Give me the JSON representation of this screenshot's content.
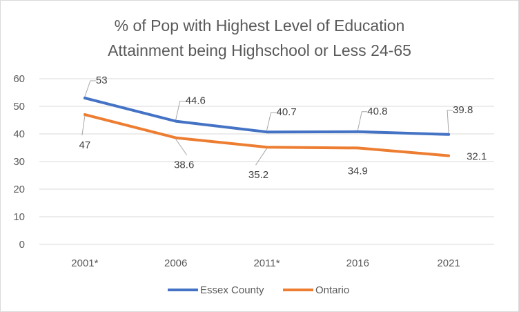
{
  "chart_data": {
    "type": "line",
    "title_lines": [
      "% of Pop with Highest Level of Education",
      "Attainment being Highschool or Less 24-65"
    ],
    "categories": [
      "2001*",
      "2006",
      "2011*",
      "2016",
      "2021"
    ],
    "ylim": [
      0,
      60
    ],
    "yticks": [
      0,
      10,
      20,
      30,
      40,
      50,
      60
    ],
    "ytick_labels": [
      "0",
      "10",
      "20",
      "30",
      "40",
      "50",
      "60"
    ],
    "grid": true,
    "legend_position": "bottom",
    "series": [
      {
        "name": "Essex County",
        "color": "#4472c4",
        "values": [
          53,
          44.6,
          40.7,
          40.8,
          39.8
        ],
        "labels": [
          "53",
          "44.6",
          "40.7",
          "40.8",
          "39.8"
        ]
      },
      {
        "name": "Ontario",
        "color": "#ed7d31",
        "values": [
          47,
          38.6,
          35.2,
          34.9,
          32.1
        ],
        "labels": [
          "47",
          "38.6",
          "35.2",
          "34.9",
          "32.1"
        ]
      }
    ]
  }
}
